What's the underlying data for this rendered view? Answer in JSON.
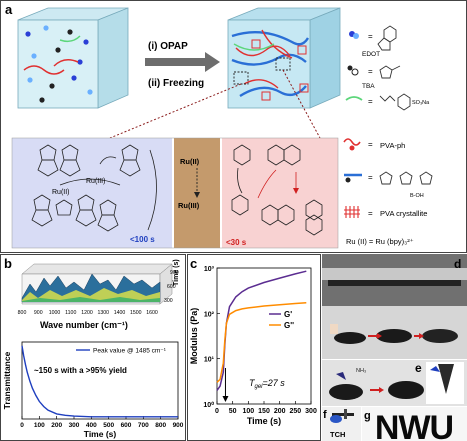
{
  "panel_a": {
    "letter": "a",
    "step1": "(i) OPAP",
    "step2": "(ii) Freezing",
    "legend": {
      "edot": "EDOT",
      "tba": "TBA",
      "pva_ph": "PVA-ph",
      "pva_crystallite": "PVA crystallite",
      "ru_formula": "Ru (II) = Ru (bpy)₃²⁺",
      "so3na": "SO₃Na",
      "boh": "B-OH"
    },
    "scheme": {
      "ru3_left": "Ru(III)",
      "ru2_left": "Ru(II)",
      "time_left": "<100 s",
      "ru2_center": "Ru(II)",
      "ru3_center": "Ru(III)",
      "time_right": "<30 s"
    }
  },
  "panel_b": {
    "letter": "b",
    "ir_xlabel": "Wave number (cm⁻¹)",
    "ir_ylabel": "Time (s)",
    "ir_xticks": [
      "800",
      "900",
      "1000",
      "1100",
      "1200",
      "1300",
      "1400",
      "1500",
      "1600"
    ],
    "ir_yticks": [
      "300",
      "600",
      "900"
    ],
    "legend": "Peak value @ 1485 cm⁻¹",
    "annotation": "~150 s with a >95% yield"
  },
  "panel_c": {
    "letter": "c",
    "annotation_prefix": "T",
    "annotation_sub": "gel",
    "annotation_suffix": "=27 s"
  },
  "panel_d": {
    "letter": "d"
  },
  "panel_e": {
    "letter": "e",
    "label": "NH₃"
  },
  "panel_f": {
    "letter": "f",
    "label": "TCH"
  },
  "panel_g": {
    "letter": "g",
    "text": "NWU"
  },
  "colors": {
    "scheme_blue_bg": "#d8dcf5",
    "scheme_tan": "#c49a6c",
    "scheme_pink_bg": "#f8d2d2",
    "gprime": "#5b2d91",
    "gdoubleprime": "#ff8c00",
    "decay": "#1f3fbf"
  },
  "chart_data": [
    {
      "type": "line",
      "title": "",
      "xlabel": "Time (s)",
      "ylabel": "Transmittance",
      "xlim": [
        0,
        900
      ],
      "xticks": [
        0,
        100,
        200,
        300,
        400,
        500,
        600,
        700,
        800,
        900
      ],
      "grid": false,
      "legend_placement": "top-right",
      "series": [
        {
          "name": "Peak value @ 1485 cm⁻¹",
          "x": [
            0,
            10,
            20,
            30,
            45,
            60,
            80,
            100,
            125,
            150,
            200,
            250,
            300,
            400,
            500,
            600,
            700,
            800,
            900
          ],
          "y": [
            1.0,
            0.86,
            0.74,
            0.64,
            0.52,
            0.42,
            0.32,
            0.24,
            0.17,
            0.12,
            0.07,
            0.05,
            0.04,
            0.03,
            0.03,
            0.03,
            0.03,
            0.03,
            0.03
          ]
        }
      ]
    },
    {
      "type": "line",
      "title": "",
      "xlabel": "Time (s)",
      "ylabel": "Modulus (Pa)",
      "xlim": [
        0,
        300
      ],
      "ylim": [
        1,
        1000
      ],
      "yscale": "log",
      "xticks": [
        0,
        50,
        100,
        150,
        200,
        250,
        300
      ],
      "yticks_labels": [
        "10⁰",
        "10¹",
        "10²",
        "10³"
      ],
      "legend_placement": "middle-right",
      "series": [
        {
          "name": "G'",
          "x": [
            0,
            10,
            20,
            25,
            30,
            40,
            60,
            80,
            100,
            150,
            200,
            250,
            285
          ],
          "y": [
            2,
            2.5,
            5,
            20,
            60,
            140,
            230,
            300,
            360,
            480,
            600,
            740,
            850
          ]
        },
        {
          "name": "G''",
          "x": [
            0,
            10,
            20,
            25,
            30,
            40,
            60,
            80,
            100,
            150,
            200,
            250,
            285
          ],
          "y": [
            3,
            3.5,
            8,
            25,
            60,
            95,
            115,
            125,
            132,
            145,
            155,
            165,
            172
          ]
        }
      ],
      "tgel_marker_x": 27
    }
  ]
}
